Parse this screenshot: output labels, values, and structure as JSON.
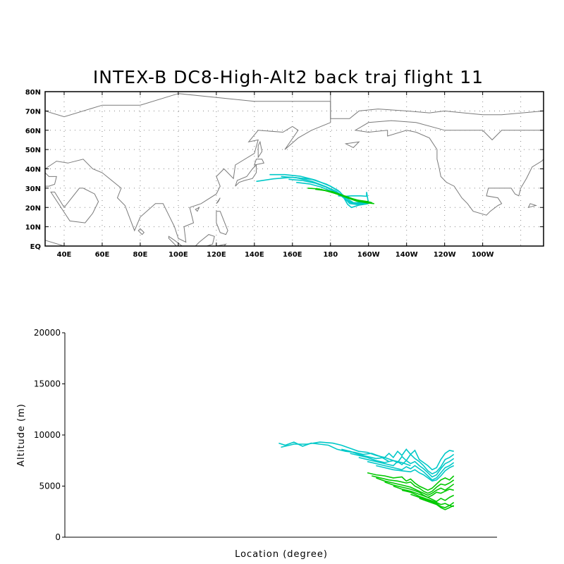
{
  "chart_data": [
    {
      "type": "line",
      "title": "INTEX-B DC8-High-Alt2 back traj flight 11",
      "xlabel": "",
      "ylabel": "",
      "x_ticks": [
        "40E",
        "60E",
        "80E",
        "100E",
        "120E",
        "140E",
        "160E",
        "180",
        "160W",
        "140W",
        "120W",
        "100W"
      ],
      "y_ticks": [
        "EQ",
        "10N",
        "20N",
        "30N",
        "40N",
        "50N",
        "60N",
        "70N",
        "80N"
      ],
      "xlim": [
        30,
        292
      ],
      "ylim": [
        0,
        80
      ],
      "grid": true,
      "series_colors": {
        "upper": "#00c8c8",
        "lower": "#00c800"
      },
      "series": [
        {
          "color": "#00c8c8",
          "x": [
            141,
            150,
            160,
            170,
            178,
            184,
            188,
            192,
            196,
            200
          ],
          "y": [
            33.5,
            34.8,
            35.6,
            34.6,
            32.0,
            28.8,
            25.0,
            22.5,
            22.2,
            22.8
          ]
        },
        {
          "color": "#00c8c8",
          "x": [
            148,
            156,
            164,
            172,
            180,
            185,
            188,
            192,
            197,
            202
          ],
          "y": [
            37.0,
            37.0,
            36.2,
            34.2,
            31.0,
            28.0,
            24.2,
            22.0,
            22.0,
            22.4
          ]
        },
        {
          "color": "#00c8c8",
          "x": [
            154,
            162,
            170,
            177,
            183,
            187,
            190,
            194,
            199
          ],
          "y": [
            36.0,
            35.4,
            33.6,
            31.0,
            28.4,
            25.4,
            22.0,
            21.5,
            21.8
          ]
        },
        {
          "color": "#00c8c8",
          "x": [
            158,
            165,
            172,
            178,
            183,
            187,
            189,
            191,
            195,
            200
          ],
          "y": [
            34.6,
            34.0,
            32.6,
            30.4,
            27.8,
            25.0,
            21.6,
            20.0,
            21.2,
            22.0
          ]
        },
        {
          "color": "#00c8c8",
          "x": [
            162,
            169,
            175,
            180,
            185,
            188,
            191,
            196,
            201
          ],
          "y": [
            33.0,
            32.2,
            30.6,
            28.6,
            26.6,
            24.0,
            22.2,
            22.6,
            22.8
          ]
        },
        {
          "color": "#00c8c8",
          "x": [
            184,
            188,
            191,
            196,
            199,
            199,
            200
          ],
          "y": [
            26.0,
            25.8,
            26.0,
            26.0,
            25.8,
            28.0,
            22.0
          ]
        },
        {
          "color": "#00c800",
          "x": [
            168,
            174,
            179,
            184,
            188,
            192,
            196,
            199,
            203
          ],
          "y": [
            30.0,
            29.6,
            28.4,
            27.0,
            25.8,
            24.2,
            23.2,
            22.4,
            22.0
          ]
        },
        {
          "color": "#00c800",
          "x": [
            172,
            177,
            182,
            186,
            190,
            194,
            198,
            201
          ],
          "y": [
            29.4,
            28.8,
            27.4,
            26.0,
            24.6,
            23.2,
            22.6,
            22.6
          ]
        },
        {
          "color": "#00c800",
          "x": [
            176,
            181,
            185,
            189,
            193,
            197,
            200,
            202
          ],
          "y": [
            29.0,
            28.2,
            26.8,
            25.4,
            24.0,
            23.2,
            22.8,
            22.4
          ]
        },
        {
          "color": "#00c800",
          "x": [
            180,
            184,
            188,
            191,
            194,
            197,
            200
          ],
          "y": [
            28.0,
            26.8,
            25.6,
            24.6,
            23.8,
            23.4,
            23.0
          ]
        },
        {
          "color": "#00c800",
          "x": [
            185,
            189,
            192,
            195,
            198,
            200
          ],
          "y": [
            26.6,
            25.4,
            24.4,
            23.6,
            23.0,
            22.8
          ]
        }
      ]
    },
    {
      "type": "line",
      "title": "",
      "xlabel": "Location (degree)",
      "ylabel": "Altitude (m)",
      "y_ticks": [
        "0",
        "5000",
        "10000",
        "15000",
        "20000"
      ],
      "ylim": [
        0,
        20000
      ],
      "xlim": [
        0,
        100
      ],
      "grid": false,
      "series": [
        {
          "color": "#00c8c8",
          "x": [
            49.5,
            51,
            53,
            55,
            57,
            59,
            61,
            63,
            65,
            67,
            69,
            71,
            73,
            75
          ],
          "y": [
            9200,
            9000,
            9300,
            8900,
            9200,
            9100,
            9000,
            8600,
            8400,
            8300,
            8100,
            8200,
            7900,
            7400
          ]
        },
        {
          "color": "#00c8c8",
          "x": [
            50,
            53,
            56,
            59,
            62,
            64,
            66,
            68,
            70,
            72,
            74,
            76,
            78,
            80
          ],
          "y": [
            8800,
            9100,
            9100,
            9300,
            9200,
            9000,
            8700,
            8400,
            8300,
            8000,
            7800,
            7500,
            7300,
            7000
          ]
        },
        {
          "color": "#00c8c8",
          "x": [
            64,
            66,
            68,
            70,
            72,
            74,
            75,
            76,
            77,
            78,
            79,
            80,
            81,
            82,
            83,
            84,
            85,
            86,
            87,
            88,
            89,
            90
          ],
          "y": [
            8600,
            8400,
            8100,
            7900,
            7700,
            7800,
            8200,
            7800,
            8400,
            8000,
            8600,
            8100,
            8500,
            7600,
            7300,
            7000,
            6600,
            6800,
            7600,
            8200,
            8500,
            8400
          ]
        },
        {
          "color": "#00c8c8",
          "x": [
            66,
            68,
            70,
            72,
            74,
            76,
            77,
            78,
            79,
            80,
            81,
            82,
            83,
            84,
            85,
            86,
            87,
            88,
            89,
            90
          ],
          "y": [
            8200,
            8000,
            7800,
            7500,
            7300,
            7500,
            7300,
            7900,
            7500,
            8100,
            7700,
            7400,
            7000,
            6500,
            6200,
            6400,
            6900,
            7600,
            7800,
            8100
          ]
        },
        {
          "color": "#00c8c8",
          "x": [
            68,
            70,
            72,
            74,
            76,
            77,
            78,
            79,
            80,
            81,
            82,
            83,
            84,
            85,
            86,
            87,
            88,
            89,
            90
          ],
          "y": [
            7800,
            7600,
            7400,
            7200,
            7000,
            7400,
            7100,
            7500,
            7200,
            7400,
            7000,
            6700,
            6300,
            5900,
            6100,
            6700,
            7200,
            7400,
            7700
          ]
        },
        {
          "color": "#00c8c8",
          "x": [
            70,
            72,
            74,
            76,
            78,
            79,
            80,
            81,
            82,
            83,
            84,
            85,
            86,
            87,
            88,
            89,
            90
          ],
          "y": [
            7400,
            7200,
            7000,
            6800,
            6600,
            6900,
            6700,
            7000,
            6700,
            6400,
            6000,
            5600,
            5800,
            6300,
            6800,
            7000,
            7300
          ]
        },
        {
          "color": "#00c8c8",
          "x": [
            72,
            74,
            76,
            78,
            80,
            81,
            82,
            83,
            84,
            85,
            86,
            87,
            88,
            89,
            90
          ],
          "y": [
            7000,
            6800,
            6600,
            6500,
            6400,
            6600,
            6300,
            6100,
            5800,
            5500,
            5600,
            6000,
            6500,
            6800,
            7000
          ]
        },
        {
          "color": "#00c800",
          "x": [
            70,
            72,
            74,
            76,
            78,
            79,
            80,
            81,
            82,
            83,
            84,
            85,
            86,
            87,
            88,
            89,
            90
          ],
          "y": [
            6300,
            6100,
            6000,
            5800,
            5900,
            5500,
            5700,
            5300,
            5000,
            4800,
            4600,
            4800,
            5200,
            5600,
            5800,
            5600,
            6000
          ]
        },
        {
          "color": "#00c800",
          "x": [
            71,
            73,
            75,
            77,
            79,
            80,
            81,
            82,
            83,
            84,
            85,
            86,
            87,
            88,
            89,
            90
          ],
          "y": [
            6000,
            5800,
            5600,
            5500,
            5300,
            5400,
            5000,
            4800,
            4500,
            4300,
            4500,
            4900,
            5200,
            5100,
            5300,
            5600
          ]
        },
        {
          "color": "#00c800",
          "x": [
            72,
            74,
            76,
            78,
            80,
            81,
            82,
            83,
            84,
            85,
            86,
            87,
            88,
            89,
            90
          ],
          "y": [
            5800,
            5500,
            5300,
            5100,
            4900,
            4700,
            4500,
            4300,
            4100,
            4300,
            4600,
            4800,
            4600,
            4900,
            5200
          ]
        },
        {
          "color": "#00c800",
          "x": [
            74,
            76,
            78,
            80,
            82,
            83,
            84,
            85,
            86,
            87,
            88,
            89,
            90
          ],
          "y": [
            5400,
            5100,
            4900,
            4700,
            4400,
            4100,
            3900,
            4100,
            4400,
            4300,
            4500,
            4700,
            4600
          ]
        },
        {
          "color": "#00c800",
          "x": [
            76,
            78,
            80,
            82,
            84,
            85,
            86,
            87,
            88,
            89,
            90
          ],
          "y": [
            5000,
            4700,
            4500,
            4200,
            3900,
            3700,
            3500,
            3800,
            3600,
            3900,
            4100
          ]
        },
        {
          "color": "#00c800",
          "x": [
            78,
            80,
            82,
            84,
            86,
            87,
            88,
            89,
            90
          ],
          "y": [
            4600,
            4400,
            4000,
            3700,
            3400,
            3200,
            3300,
            3100,
            3400
          ]
        },
        {
          "color": "#00c800",
          "x": [
            80,
            82,
            84,
            86,
            87,
            88,
            89,
            90
          ],
          "y": [
            4200,
            3900,
            3600,
            3300,
            3000,
            2900,
            3100,
            3000
          ]
        },
        {
          "color": "#00c800",
          "x": [
            82,
            84,
            86,
            87,
            88,
            89,
            90
          ],
          "y": [
            3800,
            3500,
            3200,
            2900,
            2700,
            2900,
            3100
          ]
        }
      ]
    }
  ]
}
